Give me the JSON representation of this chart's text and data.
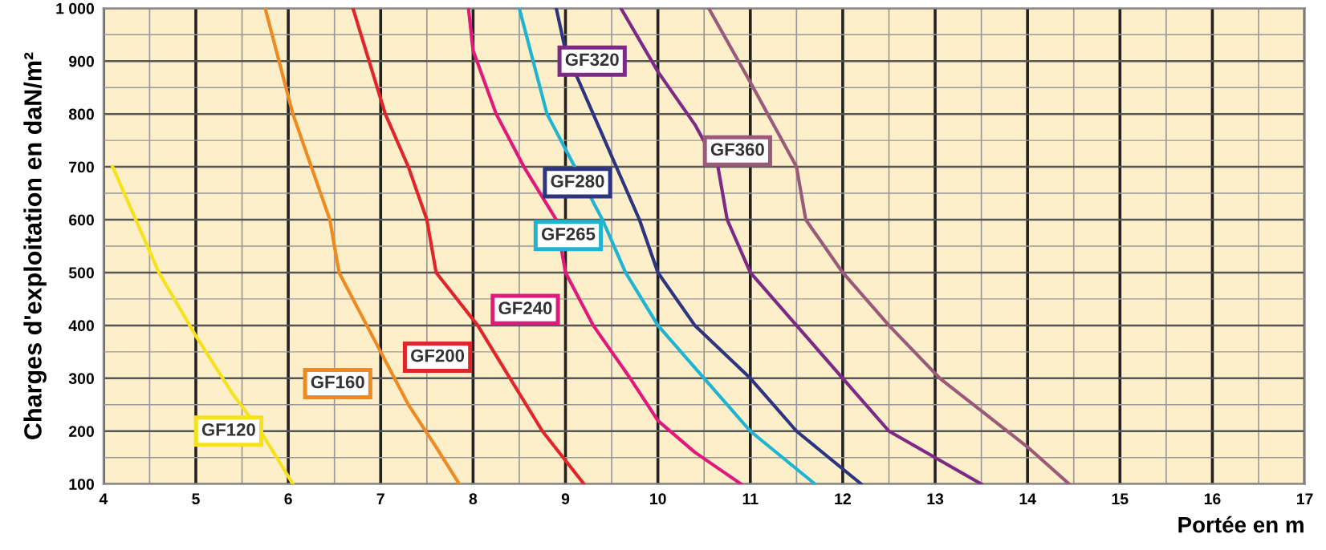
{
  "chart_data": {
    "type": "line",
    "xlabel": "Portée en m",
    "ylabel": "Charges d'exploitation en daN/m²",
    "xlim": [
      4,
      17
    ],
    "ylim": [
      100,
      1000
    ],
    "xticks": [
      4,
      5,
      6,
      7,
      8,
      9,
      10,
      11,
      12,
      13,
      14,
      15,
      16,
      17
    ],
    "yticks": [
      100,
      200,
      300,
      400,
      500,
      600,
      700,
      800,
      900,
      {
        "value": 1000,
        "label": "1 000"
      }
    ],
    "grid": true,
    "legend": false,
    "marker": "none",
    "line_style": "solid",
    "series": [
      {
        "name": "GF120",
        "color": "#f5e21c",
        "x": [
          4.1,
          4.6,
          5.0,
          5.4,
          5.7,
          6.05
        ],
        "values": [
          700,
          500,
          380,
          270,
          200,
          100
        ]
      },
      {
        "name": "GF160",
        "color": "#ee8a22",
        "x": [
          5.75,
          5.9,
          6.05,
          6.25,
          6.45,
          6.55,
          7.0,
          7.3,
          7.6,
          7.85
        ],
        "values": [
          1000,
          900,
          800,
          700,
          600,
          500,
          350,
          250,
          170,
          100
        ]
      },
      {
        "name": "GF200",
        "color": "#e0262a",
        "x": [
          6.7,
          7.05,
          7.3,
          7.5,
          7.6,
          8.05,
          8.4,
          8.75,
          9.2
        ],
        "values": [
          1000,
          800,
          700,
          600,
          500,
          400,
          300,
          200,
          100
        ]
      },
      {
        "name": "GF240",
        "color": "#e0197a",
        "x": [
          7.95,
          8.0,
          8.25,
          8.55,
          8.9,
          9.0,
          9.3,
          9.7,
          10.0,
          10.4,
          10.9
        ],
        "values": [
          1000,
          920,
          800,
          700,
          600,
          500,
          400,
          300,
          220,
          160,
          100
        ]
      },
      {
        "name": "GF265",
        "color": "#20b4d2",
        "x": [
          8.5,
          8.8,
          9.1,
          9.4,
          9.65,
          10.0,
          10.5,
          11.0,
          11.7
        ],
        "values": [
          1000,
          800,
          700,
          600,
          500,
          400,
          300,
          200,
          100
        ]
      },
      {
        "name": "GF280",
        "color": "#2d3580",
        "x": [
          8.9,
          9.0,
          9.3,
          9.6,
          9.8,
          10.0,
          10.4,
          11.0,
          11.5,
          12.2
        ],
        "values": [
          1000,
          920,
          800,
          680,
          600,
          500,
          400,
          300,
          200,
          100
        ]
      },
      {
        "name": "GF320",
        "color": "#7d2a86",
        "x": [
          9.6,
          10.0,
          10.4,
          10.65,
          10.75,
          11.0,
          11.5,
          12.0,
          12.5,
          13.5
        ],
        "values": [
          1000,
          880,
          780,
          700,
          600,
          500,
          400,
          300,
          200,
          100
        ]
      },
      {
        "name": "GF360",
        "color": "#9a5a7a",
        "x": [
          10.55,
          11.0,
          11.5,
          11.6,
          12.0,
          12.5,
          13.05,
          14.0,
          14.45
        ],
        "values": [
          1000,
          860,
          700,
          600,
          500,
          400,
          300,
          170,
          100
        ]
      }
    ]
  }
}
